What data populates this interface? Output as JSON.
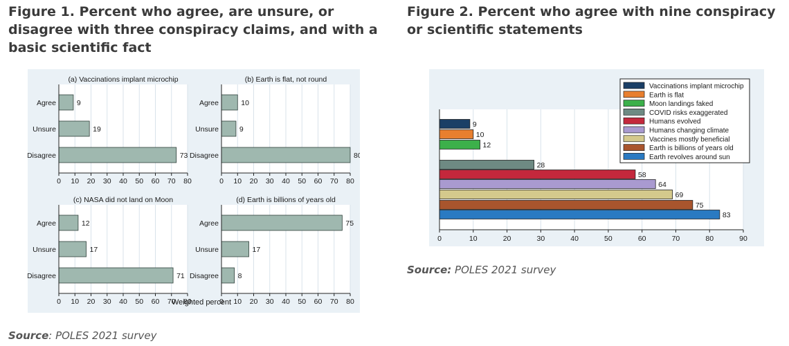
{
  "figure1": {
    "title": "Figure 1. Percent who agree, are unsure, or disagree with three conspiracy claims, and with a basic scientific fact",
    "source_label": "Source",
    "source_text": ": POLES 2021 survey"
  },
  "figure2": {
    "title": "Figure 2. Percent who agree with nine conspiracy or scientific statements",
    "source_label": "Source:",
    "source_text": " POLES 2021 survey"
  },
  "colors": {
    "panel_bg": "#eaf1f6",
    "bar_fill": "#9fb8af"
  },
  "chart_data": [
    {
      "type": "bar",
      "orientation": "horizontal",
      "xlabel": "Weighted percent",
      "xlim": [
        0,
        80
      ],
      "xticks": [
        0,
        10,
        20,
        30,
        40,
        50,
        60,
        70,
        80
      ],
      "categories": [
        "Agree",
        "Unsure",
        "Disagree"
      ],
      "panels": [
        {
          "title": "(a)  Vaccinations implant microchip",
          "values": [
            9,
            19,
            73
          ]
        },
        {
          "title": "(b)  Earth is flat, not round",
          "values": [
            10,
            9,
            80
          ]
        },
        {
          "title": "(c)  NASA did not land on Moon",
          "values": [
            12,
            17,
            71
          ]
        },
        {
          "title": "(d)  Earth is billions of years old",
          "values": [
            75,
            17,
            8
          ]
        }
      ]
    },
    {
      "type": "bar",
      "orientation": "horizontal",
      "xlim": [
        0,
        90
      ],
      "xticks": [
        0,
        10,
        20,
        30,
        40,
        50,
        60,
        70,
        80,
        90
      ],
      "legend_position": "top-right",
      "series": [
        {
          "name": "Vaccinations implant microchip",
          "value": 9,
          "color": "#1b3f66"
        },
        {
          "name": "Earth is flat",
          "value": 10,
          "color": "#e87f2f"
        },
        {
          "name": "Moon landings faked",
          "value": 12,
          "color": "#3cb04a"
        },
        {
          "name": "COVID risks exaggerated",
          "value": 28,
          "color": "#6e8a83"
        },
        {
          "name": "Humans evolved",
          "value": 58,
          "color": "#c4283c"
        },
        {
          "name": "Humans changing climate",
          "value": 64,
          "color": "#a99ad0"
        },
        {
          "name": "Vaccines mostly beneficial",
          "value": 69,
          "color": "#d4c98c"
        },
        {
          "name": "Earth is billions of years old",
          "value": 75,
          "color": "#a9552d"
        },
        {
          "name": "Earth revolves around sun",
          "value": 83,
          "color": "#2a7ac2"
        }
      ]
    }
  ]
}
